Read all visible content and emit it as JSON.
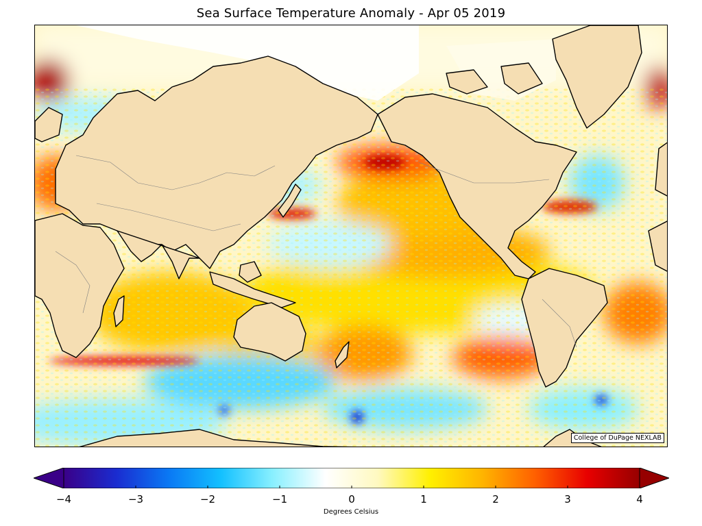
{
  "title": "Sea Surface Temperature Anomaly - Apr 05 2019",
  "credit": "College of DuPage NEXLAB",
  "colorbar": {
    "label": "Degrees Celsius",
    "min": -4,
    "max": 4,
    "ticks": [
      "−4",
      "−3",
      "−2",
      "−1",
      "0",
      "1",
      "2",
      "3",
      "4"
    ],
    "stops": [
      "#3a0088",
      "#1a2cd0",
      "#0a78f4",
      "#13c0ff",
      "#8af0ff",
      "#ffffff",
      "#fff9c0",
      "#fff000",
      "#ffb400",
      "#ff6000",
      "#e80000",
      "#960000"
    ]
  },
  "colors": {
    "land": "#f5deb3",
    "coast": "#000000",
    "border": "#808080",
    "ice": "#ffffff"
  }
}
